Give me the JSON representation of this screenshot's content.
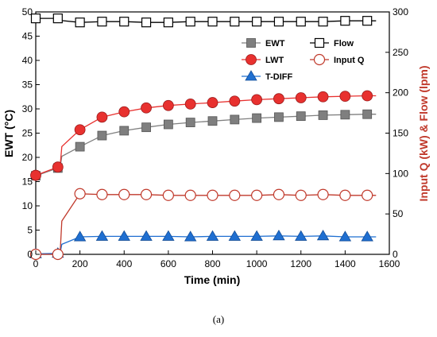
{
  "chart_data": {
    "type": "line",
    "xlabel": "Time (min)",
    "ylabel_left": "EWT (°C)",
    "ylabel_right": "Input Q (kW) & Flow (lpm)",
    "xlim": [
      0,
      1600
    ],
    "ylim_left": [
      0,
      50
    ],
    "ylim_right": [
      0,
      300
    ],
    "xticks": [
      0,
      200,
      400,
      600,
      800,
      1000,
      1200,
      1400,
      1600
    ],
    "yticks_left": [
      0,
      5,
      10,
      15,
      20,
      25,
      30,
      35,
      40,
      45,
      50
    ],
    "yticks_right": [
      0,
      50,
      100,
      150,
      200,
      250,
      300
    ],
    "grid": false,
    "legend_placement": "top-right",
    "series": [
      {
        "name": "EWT",
        "axis": "left",
        "marker": "filled-square",
        "color": "#7f7f7f",
        "x": [
          0,
          100,
          200,
          300,
          400,
          500,
          600,
          700,
          800,
          900,
          1000,
          1100,
          1200,
          1300,
          1400,
          1500
        ],
        "y": [
          16.2,
          17.8,
          22.2,
          24.5,
          25.5,
          26.2,
          26.8,
          27.2,
          27.5,
          27.8,
          28.1,
          28.3,
          28.5,
          28.7,
          28.8,
          28.9
        ]
      },
      {
        "name": "LWT",
        "axis": "left",
        "marker": "filled-circle",
        "color": "#e8312f",
        "x": [
          0,
          100,
          200,
          300,
          400,
          500,
          600,
          700,
          800,
          900,
          1000,
          1100,
          1200,
          1300,
          1400,
          1500
        ],
        "y": [
          16.3,
          18.0,
          25.7,
          28.3,
          29.4,
          30.2,
          30.7,
          31.0,
          31.3,
          31.6,
          31.9,
          32.1,
          32.3,
          32.5,
          32.6,
          32.7
        ]
      },
      {
        "name": "T-DIFF",
        "axis": "left",
        "marker": "filled-triangle",
        "color": "#1f6fd1",
        "x": [
          0,
          100,
          200,
          300,
          400,
          500,
          600,
          700,
          800,
          900,
          1000,
          1100,
          1200,
          1300,
          1400,
          1500
        ],
        "y": [
          0.1,
          0.2,
          3.6,
          3.7,
          3.7,
          3.7,
          3.7,
          3.6,
          3.7,
          3.7,
          3.7,
          3.8,
          3.7,
          3.8,
          3.6,
          3.6
        ]
      },
      {
        "name": "Flow",
        "axis": "right",
        "marker": "open-square",
        "color": "#000000",
        "x": [
          0,
          100,
          200,
          300,
          400,
          500,
          600,
          700,
          800,
          900,
          1000,
          1100,
          1200,
          1300,
          1400,
          1500
        ],
        "y": [
          292,
          292,
          287,
          288,
          288,
          287,
          287,
          288,
          288,
          288,
          288,
          288,
          288,
          288,
          289,
          289
        ]
      },
      {
        "name": "Input Q",
        "axis": "right",
        "marker": "open-circle",
        "color": "#c0392b",
        "x": [
          0,
          100,
          200,
          300,
          400,
          500,
          600,
          700,
          800,
          900,
          1000,
          1100,
          1200,
          1300,
          1400,
          1500
        ],
        "y": [
          0,
          0,
          75,
          74,
          74,
          74,
          73,
          73,
          73,
          73,
          73,
          74,
          73,
          74,
          73,
          73
        ]
      }
    ]
  },
  "caption": "(a)"
}
